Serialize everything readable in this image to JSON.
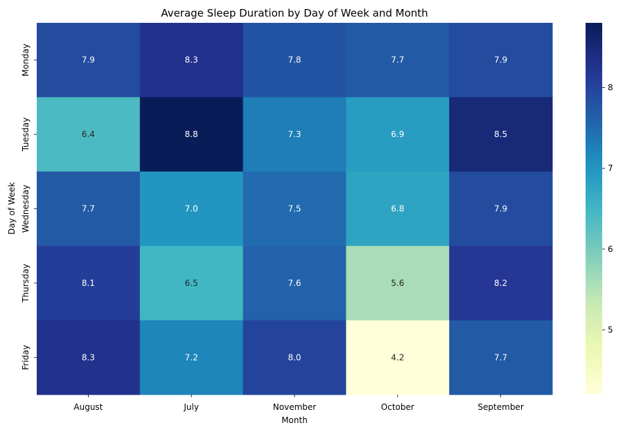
{
  "chart_data": {
    "type": "heatmap",
    "title": "Average Sleep Duration by Day of Week and Month",
    "xlabel": "Month",
    "ylabel": "Day of Week",
    "x_categories": [
      "August",
      "July",
      "November",
      "October",
      "September"
    ],
    "y_categories": [
      "Monday",
      "Tuesday",
      "Wednesday",
      "Thursday",
      "Friday"
    ],
    "values": [
      [
        7.9,
        8.3,
        7.8,
        7.7,
        7.9
      ],
      [
        6.4,
        8.8,
        7.3,
        6.9,
        8.5
      ],
      [
        7.7,
        7.0,
        7.5,
        6.8,
        7.9
      ],
      [
        8.1,
        6.5,
        7.6,
        5.6,
        8.2
      ],
      [
        8.3,
        7.2,
        8.0,
        4.2,
        7.7
      ]
    ],
    "colormap": "YlGnBu",
    "colorbar": {
      "range": [
        4.2,
        8.8
      ],
      "ticks": [
        "5",
        "6",
        "7",
        "8"
      ]
    },
    "annotations": true
  }
}
